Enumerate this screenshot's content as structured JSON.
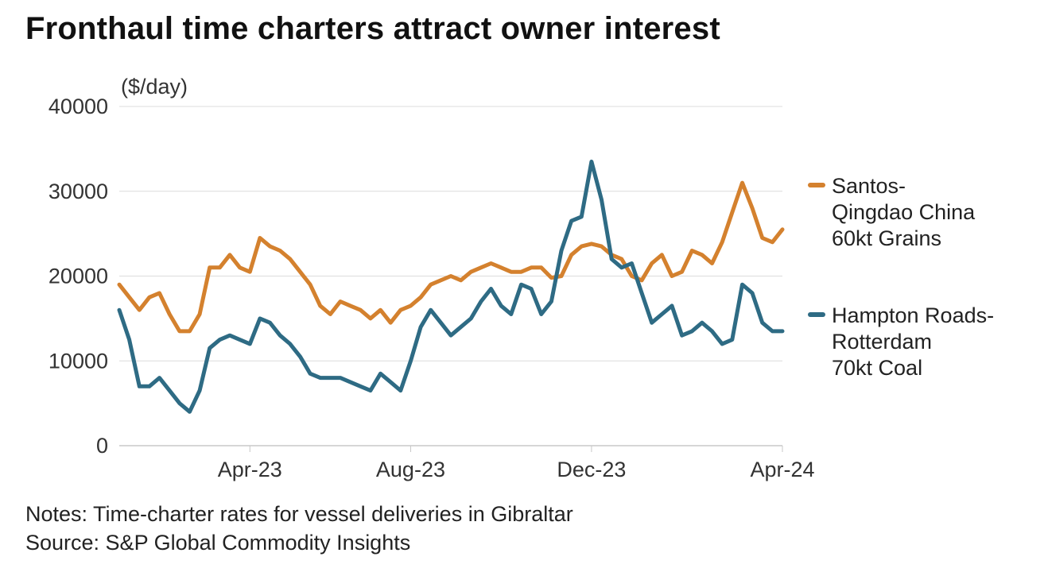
{
  "chart_data": {
    "type": "line",
    "title": "Fronthaul time charters attract owner interest",
    "ylabel": "($/day)",
    "xlabel": "",
    "ylim": [
      0,
      40000
    ],
    "yticks": [
      0,
      10000,
      20000,
      30000,
      40000
    ],
    "xlim": [
      0,
      66
    ],
    "xticks": [
      {
        "label": "Apr-23",
        "x": 13
      },
      {
        "label": "Aug-23",
        "x": 29
      },
      {
        "label": "Dec-23",
        "x": 47
      },
      {
        "label": "Apr-24",
        "x": 66
      }
    ],
    "grid": true,
    "legend_position": "right",
    "series": [
      {
        "name": "Santos-\nQingdao China\n60kt Grains",
        "color": "#d4812e",
        "points": [
          [
            0,
            19000
          ],
          [
            1,
            17500
          ],
          [
            2,
            16000
          ],
          [
            3,
            17500
          ],
          [
            4,
            18000
          ],
          [
            5,
            15500
          ],
          [
            6,
            13500
          ],
          [
            7,
            13500
          ],
          [
            8,
            15500
          ],
          [
            9,
            21000
          ],
          [
            10,
            21000
          ],
          [
            11,
            22500
          ],
          [
            12,
            21000
          ],
          [
            13,
            20500
          ],
          [
            14,
            24500
          ],
          [
            15,
            23500
          ],
          [
            16,
            23000
          ],
          [
            17,
            22000
          ],
          [
            18,
            20500
          ],
          [
            19,
            19000
          ],
          [
            20,
            16500
          ],
          [
            21,
            15500
          ],
          [
            22,
            17000
          ],
          [
            23,
            16500
          ],
          [
            24,
            16000
          ],
          [
            25,
            15000
          ],
          [
            26,
            16000
          ],
          [
            27,
            14500
          ],
          [
            28,
            16000
          ],
          [
            29,
            16500
          ],
          [
            30,
            17500
          ],
          [
            31,
            19000
          ],
          [
            32,
            19500
          ],
          [
            33,
            20000
          ],
          [
            34,
            19500
          ],
          [
            35,
            20500
          ],
          [
            36,
            21000
          ],
          [
            37,
            21500
          ],
          [
            38,
            21000
          ],
          [
            39,
            20500
          ],
          [
            40,
            20500
          ],
          [
            41,
            21000
          ],
          [
            42,
            21000
          ],
          [
            43,
            19800
          ],
          [
            44,
            20000
          ],
          [
            45,
            22500
          ],
          [
            46,
            23500
          ],
          [
            47,
            23800
          ],
          [
            48,
            23500
          ],
          [
            49,
            22500
          ],
          [
            50,
            22000
          ],
          [
            51,
            20000
          ],
          [
            52,
            19500
          ],
          [
            53,
            21500
          ],
          [
            54,
            22500
          ],
          [
            55,
            20000
          ],
          [
            56,
            20500
          ],
          [
            57,
            23000
          ],
          [
            58,
            22500
          ],
          [
            59,
            21500
          ],
          [
            60,
            24000
          ],
          [
            61,
            27500
          ],
          [
            62,
            31000
          ],
          [
            63,
            28000
          ],
          [
            64,
            24500
          ],
          [
            65,
            24000
          ],
          [
            66,
            25500
          ]
        ]
      },
      {
        "name": "Hampton Roads-\nRotterdam\n70kt Coal",
        "color": "#2e6b84",
        "points": [
          [
            0,
            16000
          ],
          [
            1,
            12500
          ],
          [
            2,
            7000
          ],
          [
            3,
            7000
          ],
          [
            4,
            8000
          ],
          [
            5,
            6500
          ],
          [
            6,
            5000
          ],
          [
            7,
            4000
          ],
          [
            8,
            6500
          ],
          [
            9,
            11500
          ],
          [
            10,
            12500
          ],
          [
            11,
            13000
          ],
          [
            12,
            12500
          ],
          [
            13,
            12000
          ],
          [
            14,
            15000
          ],
          [
            15,
            14500
          ],
          [
            16,
            13000
          ],
          [
            17,
            12000
          ],
          [
            18,
            10500
          ],
          [
            19,
            8500
          ],
          [
            20,
            8000
          ],
          [
            21,
            8000
          ],
          [
            22,
            8000
          ],
          [
            23,
            7500
          ],
          [
            24,
            7000
          ],
          [
            25,
            6500
          ],
          [
            26,
            8500
          ],
          [
            27,
            7500
          ],
          [
            28,
            6500
          ],
          [
            29,
            10000
          ],
          [
            30,
            14000
          ],
          [
            31,
            16000
          ],
          [
            32,
            14500
          ],
          [
            33,
            13000
          ],
          [
            34,
            14000
          ],
          [
            35,
            15000
          ],
          [
            36,
            17000
          ],
          [
            37,
            18500
          ],
          [
            38,
            16500
          ],
          [
            39,
            15500
          ],
          [
            40,
            19000
          ],
          [
            41,
            18500
          ],
          [
            42,
            15500
          ],
          [
            43,
            17000
          ],
          [
            44,
            23000
          ],
          [
            45,
            26500
          ],
          [
            46,
            27000
          ],
          [
            47,
            33500
          ],
          [
            48,
            29000
          ],
          [
            49,
            22000
          ],
          [
            50,
            21000
          ],
          [
            51,
            21500
          ],
          [
            52,
            18000
          ],
          [
            53,
            14500
          ],
          [
            54,
            15500
          ],
          [
            55,
            16500
          ],
          [
            56,
            13000
          ],
          [
            57,
            13500
          ],
          [
            58,
            14500
          ],
          [
            59,
            13500
          ],
          [
            60,
            12000
          ],
          [
            61,
            12500
          ],
          [
            62,
            19000
          ],
          [
            63,
            18000
          ],
          [
            64,
            14500
          ],
          [
            65,
            13500
          ],
          [
            66,
            13500
          ]
        ]
      }
    ]
  },
  "notes": "Notes: Time-charter rates for vessel deliveries in Gibraltar",
  "source": "Source: S&P Global Commodity Insights"
}
